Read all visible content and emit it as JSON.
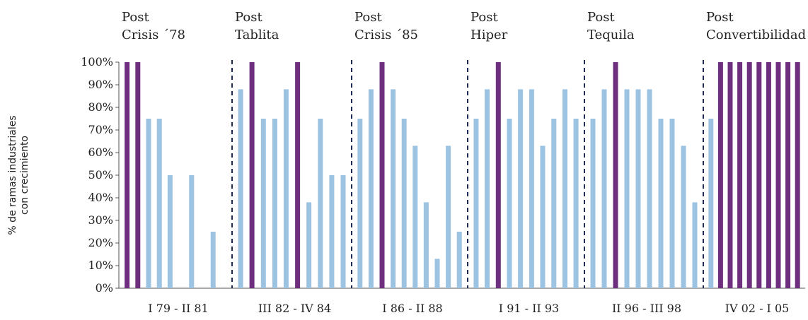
{
  "chart_data": {
    "type": "bar",
    "ylabel_lines": [
      "% de ramas industriales",
      "con crecimiento"
    ],
    "yticks": [
      "0%",
      "10%",
      "20%",
      "30%",
      "40%",
      "50%",
      "60%",
      "70%",
      "80%",
      "90%",
      "100%"
    ],
    "ylim": [
      0,
      100
    ],
    "grid": false,
    "colors": {
      "light": "#9dc3e2",
      "dark": "#6e2f7f",
      "divider": "#1f2a55",
      "axis": "#555555"
    },
    "periods": [
      {
        "title_lines": [
          "Post",
          "Crisis ´78"
        ],
        "range_label": "I 79 - II 81",
        "values": [
          100,
          100,
          75,
          75,
          50,
          0,
          50,
          0,
          25,
          0
        ],
        "highlight": [
          true,
          true,
          false,
          false,
          false,
          false,
          false,
          false,
          false,
          false
        ]
      },
      {
        "title_lines": [
          "Post",
          "Tablita"
        ],
        "range_label": "III 82 - IV 84",
        "values": [
          88,
          100,
          75,
          75,
          88,
          100,
          38,
          75,
          50,
          50
        ],
        "highlight": [
          false,
          true,
          false,
          false,
          false,
          true,
          false,
          false,
          false,
          false
        ]
      },
      {
        "title_lines": [
          "Post",
          "Crisis ´85"
        ],
        "range_label": "I 86 - II 88",
        "values": [
          75,
          88,
          100,
          88,
          75,
          63,
          38,
          13,
          63,
          25
        ],
        "highlight": [
          false,
          false,
          true,
          false,
          false,
          false,
          false,
          false,
          false,
          false
        ]
      },
      {
        "title_lines": [
          "Post",
          "Hiper"
        ],
        "range_label": "I 91 - II 93",
        "values": [
          75,
          88,
          100,
          75,
          88,
          88,
          63,
          75,
          88,
          75
        ],
        "highlight": [
          false,
          false,
          true,
          false,
          false,
          false,
          false,
          false,
          false,
          false
        ]
      },
      {
        "title_lines": [
          "Post",
          "Tequila"
        ],
        "range_label": "II 96 - III 98",
        "values": [
          75,
          88,
          100,
          88,
          88,
          88,
          75,
          75,
          63,
          38
        ],
        "highlight": [
          false,
          false,
          true,
          false,
          false,
          false,
          false,
          false,
          false,
          false
        ]
      },
      {
        "title_lines": [
          "Post",
          "Convertibilidad"
        ],
        "range_label": "IV 02 - I 05",
        "values": [
          75,
          100,
          100,
          100,
          100,
          100,
          100,
          100,
          100,
          100
        ],
        "highlight": [
          false,
          true,
          true,
          true,
          true,
          true,
          true,
          true,
          true,
          true
        ]
      }
    ]
  }
}
